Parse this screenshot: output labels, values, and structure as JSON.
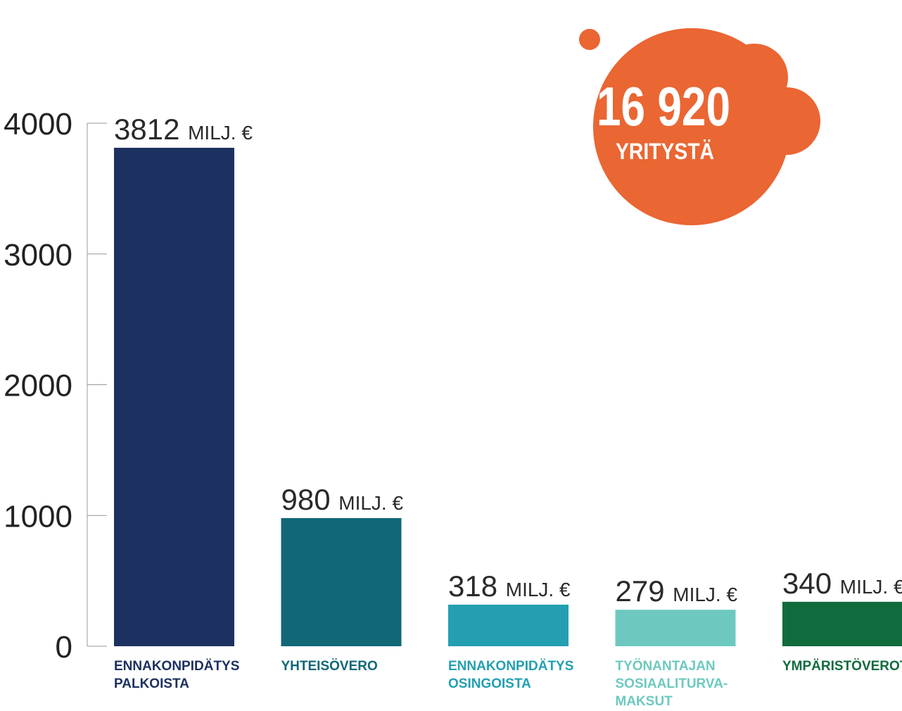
{
  "chart_data": {
    "type": "bar",
    "categories": [
      [
        "ENNAKONPIDÄTYS",
        "PALKOISTA"
      ],
      [
        "YHTEISÖVERO"
      ],
      [
        "ENNAKONPIDÄTYS",
        "OSINGOISTA"
      ],
      [
        "TYÖNANTAJAN",
        "SOSIAALITURVA-",
        "MAKSUT"
      ],
      [
        "YMPÄRISTÖVEROT"
      ]
    ],
    "values": [
      3812,
      980,
      318,
      279,
      340
    ],
    "value_unit": "MILJ. €",
    "colors": [
      "#1d3160",
      "#116776",
      "#239fb1",
      "#6dc9bf",
      "#106b3d"
    ],
    "ylim": [
      0,
      4000
    ],
    "yticks": [
      0,
      1000,
      2000,
      3000,
      4000
    ],
    "annotation": {
      "value": "16 920",
      "label": "YRITYSTÄ"
    }
  }
}
